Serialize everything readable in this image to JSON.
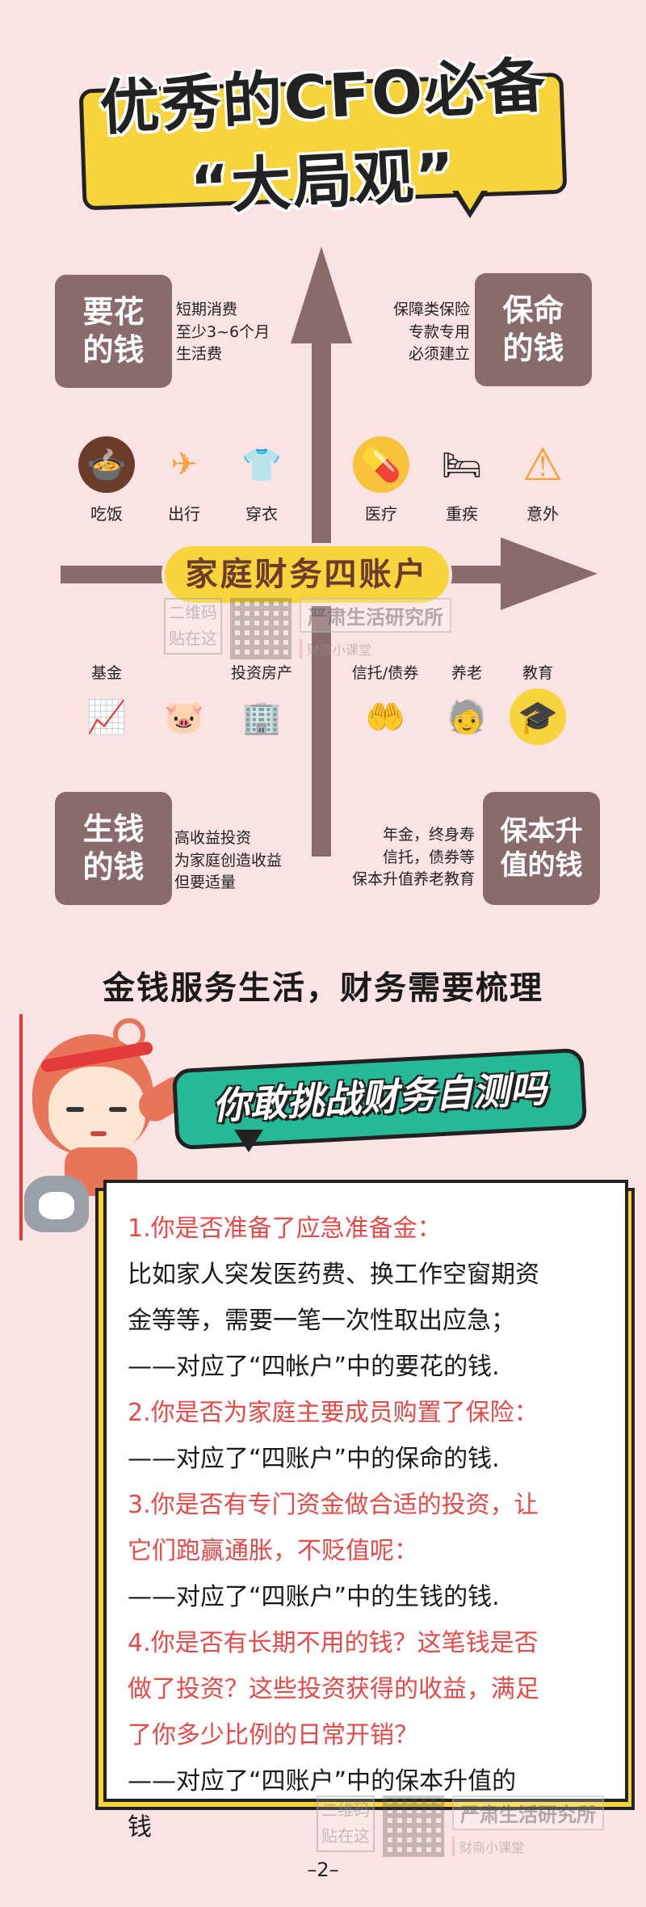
{
  "title": {
    "line1": "优秀的CFO必备",
    "line2": "“大局观”"
  },
  "center_label": "家庭财务四账户",
  "quadrants": {
    "top_left": {
      "label_line1": "要花",
      "label_line2": "的钱",
      "desc": [
        "短期消费",
        "至少3~6个月",
        "生活费"
      ],
      "icons": [
        {
          "name": "food",
          "label": "吃饭",
          "glyph": "🍲",
          "bg": "#6b3b2b"
        },
        {
          "name": "airplane",
          "label": "出行",
          "glyph": "✈",
          "bg": "#f7a33c"
        },
        {
          "name": "shirt",
          "label": "穿衣",
          "glyph": "👕",
          "bg": "#f7c33c"
        }
      ]
    },
    "top_right": {
      "label_line1": "保命",
      "label_line2": "的钱",
      "desc": [
        "保障类保险",
        "专款专用",
        "必须建立"
      ],
      "icons": [
        {
          "name": "pill",
          "label": "医疗",
          "glyph": "💊",
          "bg": "#f7c33c"
        },
        {
          "name": "stretcher",
          "label": "重疾",
          "glyph": "🛏",
          "bg": "#49b3e0"
        },
        {
          "name": "warning",
          "label": "意外",
          "glyph": "⚠",
          "bg": "#f7a33c"
        }
      ]
    },
    "bottom_left": {
      "label_line1": "生钱",
      "label_line2": "的钱",
      "desc": [
        "高收益投资",
        "为家庭创造收益",
        "但要适量"
      ],
      "icons": [
        {
          "name": "chart",
          "label": "基金",
          "glyph": "📈",
          "bg": "#3b5bd6"
        },
        {
          "name": "piggy-bank",
          "label": "",
          "glyph": "🐷",
          "bg": "#f7b33c"
        },
        {
          "name": "building",
          "label": "投资房产",
          "glyph": "🏢",
          "bg": "#6b3b2b"
        }
      ]
    },
    "bottom_right": {
      "label_line1": "保本升",
      "label_line2": "值的钱",
      "desc": [
        "年金，终身寿",
        "信托，债券等",
        "保本升值养老教育"
      ],
      "icons": [
        {
          "name": "trust",
          "label": "信托/债券",
          "glyph": "🤲",
          "bg": "#49b3e0"
        },
        {
          "name": "elderly",
          "label": "养老",
          "glyph": "🧓",
          "bg": "#b3543b"
        },
        {
          "name": "graduation-cap",
          "label": "教育",
          "glyph": "🎓",
          "bg": "#f7d43c"
        }
      ]
    }
  },
  "watermark": {
    "qr_text_line1": "二维码",
    "qr_text_line2": "贴在这",
    "brand": "严肃生活研究所",
    "sub": "财商小课堂"
  },
  "subtitle": "金钱服务生活，财务需要梳理",
  "challenge": "你敢挑战财务自测吗",
  "quiz": [
    {
      "text": "1.你是否准备了应急准备金：",
      "color": "red"
    },
    {
      "text": "比如家人突发医药费、换工作空窗期资",
      "color": "black"
    },
    {
      "text": "金等等，需要一笔一次性取出应急；",
      "color": "black"
    },
    {
      "text": "——对应了“四帐户”中的要花的钱.",
      "color": "black"
    },
    {
      "text": "2.你是否为家庭主要成员购置了保险：",
      "color": "red"
    },
    {
      "text": "——对应了“四账户”中的保命的钱.",
      "color": "black"
    },
    {
      "text": "3.你是否有专门资金做合适的投资，让",
      "color": "red"
    },
    {
      "text": "它们跑赢通胀，不贬值呢：",
      "color": "red"
    },
    {
      "text": "——对应了“四账户”中的生钱的钱.",
      "color": "black"
    },
    {
      "text": "4.你是否有长期不用的钱？这笔钱是否",
      "color": "red"
    },
    {
      "text": "做了投资？这些投资获得的收益，满足",
      "color": "red"
    },
    {
      "text": "了你多少比例的日常开销？",
      "color": "red"
    },
    {
      "text": "——对应了“四账户”中的保本升值的",
      "color": "black"
    },
    {
      "text": "钱",
      "color": "black"
    }
  ],
  "page_number": "–2–"
}
